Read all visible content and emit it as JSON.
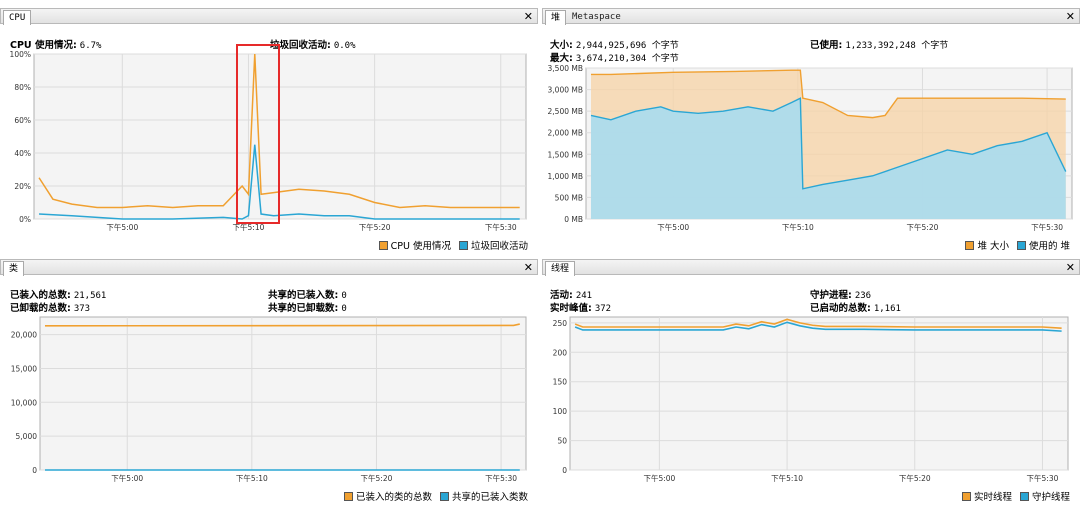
{
  "colors": {
    "orange": "#f0a030",
    "blue": "#2aa6d4",
    "highlight": "#e62a2a",
    "grid": "#dcdcdc",
    "plotbg": "#f4f4f4"
  },
  "cpu": {
    "tab": "CPU",
    "close": "✕",
    "usage_label": "CPU 使用情况:",
    "usage_value": "6.7%",
    "gc_label": "垃圾回收活动:",
    "gc_value": "0.0%",
    "y_ticks": [
      "100%",
      "80%",
      "60%",
      "40%",
      "20%",
      "0%"
    ],
    "x_ticks": [
      "下午5:00",
      "下午5:10",
      "下午5:20",
      "下午5:30"
    ],
    "legend": [
      "CPU 使用情况",
      "垃圾回收活动"
    ]
  },
  "heap": {
    "tab_active": "堆",
    "tab_inactive": "Metaspace",
    "close": "✕",
    "size_label": "大小:",
    "size_value": "2,944,925,696 个字节",
    "max_label": "最大:",
    "max_value": "3,674,210,304 个字节",
    "used_label": "已使用:",
    "used_value": "1,233,392,248 个字节",
    "y_ticks": [
      "3,500 MB",
      "3,000 MB",
      "2,500 MB",
      "2,000 MB",
      "1,500 MB",
      "1,000 MB",
      "500 MB",
      "0 MB"
    ],
    "x_ticks": [
      "下午5:00",
      "下午5:10",
      "下午5:20",
      "下午5:30"
    ],
    "legend": [
      "堆 大小",
      "使用的 堆"
    ]
  },
  "classes": {
    "tab": "类",
    "close": "✕",
    "loaded_label": "已装入的总数:",
    "loaded_value": "21,561",
    "unloaded_label": "已卸载的总数:",
    "unloaded_value": "373",
    "shared_loaded_label": "共享的已装入数:",
    "shared_loaded_value": "0",
    "shared_unloaded_label": "共享的已卸载数:",
    "shared_unloaded_value": "0",
    "y_ticks": [
      "20,000",
      "15,000",
      "10,000",
      "5,000",
      "0"
    ],
    "x_ticks": [
      "下午5:00",
      "下午5:10",
      "下午5:20",
      "下午5:30"
    ],
    "legend": [
      "已装入的类的总数",
      "共享的已装入类数"
    ]
  },
  "threads": {
    "tab": "线程",
    "close": "✕",
    "live_label": "活动:",
    "live_value": "241",
    "peak_label": "实时峰值:",
    "peak_value": "372",
    "daemon_label": "守护进程:",
    "daemon_value": "236",
    "started_label": "已启动的总数:",
    "started_value": "1,161",
    "y_ticks": [
      "250",
      "200",
      "150",
      "100",
      "50",
      "0"
    ],
    "x_ticks": [
      "下午5:00",
      "下午5:10",
      "下午5:20",
      "下午5:30"
    ],
    "legend": [
      "实时线程",
      "守护线程"
    ]
  },
  "chart_data": [
    {
      "type": "line",
      "name": "CPU",
      "ylim": [
        0,
        100
      ],
      "x_minutes": [
        -7,
        0,
        10,
        20,
        30
      ],
      "series": [
        {
          "name": "CPU 使用情况",
          "x": [
            -6.6,
            -5.5,
            -4,
            -2,
            0,
            2,
            4,
            6,
            8,
            9.5,
            10,
            10.5,
            11,
            12,
            14,
            16,
            18,
            20,
            22,
            24,
            26,
            28,
            30,
            31.5
          ],
          "values": [
            25,
            12,
            9,
            7,
            7,
            8,
            7,
            8,
            8,
            20,
            15,
            100,
            15,
            16,
            18,
            17,
            15,
            10,
            7,
            8,
            7,
            7,
            7,
            7
          ]
        },
        {
          "name": "垃圾回收活动",
          "x": [
            -6.6,
            -4,
            0,
            4,
            8,
            9.5,
            10,
            10.5,
            11,
            12,
            14,
            16,
            18,
            20,
            24,
            28,
            31.5
          ],
          "values": [
            3,
            2,
            0,
            0,
            1,
            0,
            2,
            45,
            3,
            2,
            3,
            2,
            2,
            0,
            0,
            0,
            0
          ]
        }
      ]
    },
    {
      "type": "area",
      "name": "堆",
      "ylim": [
        0,
        3500
      ],
      "series": [
        {
          "name": "堆 大小",
          "x": [
            -6.6,
            -5,
            0,
            5,
            9.5,
            10.2,
            10.4,
            12,
            14,
            16,
            17,
            17.5,
            18,
            24,
            28,
            31.5
          ],
          "values": [
            3350,
            3350,
            3400,
            3420,
            3450,
            3450,
            2800,
            2700,
            2400,
            2350,
            2400,
            2600,
            2800,
            2800,
            2800,
            2780
          ]
        },
        {
          "name": "使用的 堆",
          "x": [
            -6.6,
            -5,
            -3,
            -1,
            0,
            2,
            4,
            6,
            8,
            9.5,
            10.2,
            10.4,
            12,
            14,
            16,
            18,
            20,
            22,
            24,
            26,
            28,
            30,
            31.5
          ],
          "values": [
            2400,
            2300,
            2500,
            2600,
            2500,
            2450,
            2500,
            2600,
            2500,
            2700,
            2800,
            700,
            800,
            900,
            1000,
            1200,
            1400,
            1600,
            1500,
            1700,
            1800,
            2000,
            1100
          ]
        }
      ]
    },
    {
      "type": "line",
      "name": "类",
      "ylim": [
        0,
        22000
      ],
      "series": [
        {
          "name": "已装入的类的总数",
          "x": [
            -6.6,
            31,
            31.5
          ],
          "values": [
            21300,
            21350,
            21561
          ]
        },
        {
          "name": "共享的已装入类数",
          "x": [
            -6.6,
            31.5
          ],
          "values": [
            0,
            0
          ]
        }
      ]
    },
    {
      "type": "line",
      "name": "线程",
      "ylim": [
        0,
        260
      ],
      "series": [
        {
          "name": "实时线程",
          "x": [
            -6.6,
            -6,
            0,
            5,
            6,
            7,
            8,
            9,
            10,
            11,
            12,
            13,
            14,
            16,
            20,
            25,
            30,
            31.5
          ],
          "values": [
            248,
            243,
            243,
            243,
            248,
            245,
            252,
            248,
            256,
            250,
            246,
            244,
            244,
            244,
            243,
            243,
            243,
            241
          ]
        },
        {
          "name": "守护线程",
          "x": [
            -6.6,
            -6,
            0,
            5,
            6,
            7,
            8,
            9,
            10,
            11,
            12,
            13,
            14,
            16,
            20,
            25,
            30,
            31.5
          ],
          "values": [
            243,
            238,
            238,
            238,
            243,
            240,
            247,
            243,
            251,
            245,
            241,
            239,
            239,
            239,
            238,
            238,
            238,
            236
          ]
        }
      ]
    }
  ]
}
